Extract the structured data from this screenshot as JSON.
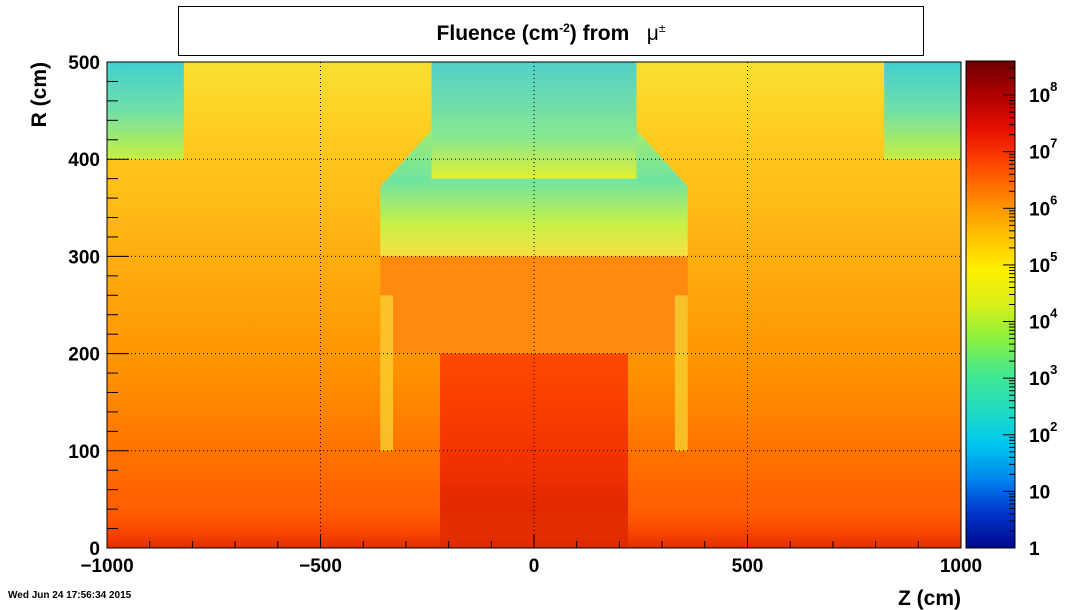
{
  "chart_data": {
    "type": "heatmap",
    "title": {
      "prefix": "Fluence (cm",
      "exponent": "-2",
      "suffix": ") from",
      "particle": "μ",
      "particle_sup": "±"
    },
    "xlabel": "Z (cm)",
    "ylabel": "R (cm)",
    "xlim": [
      -1000,
      1000
    ],
    "ylim": [
      0,
      500
    ],
    "x_ticks": [
      {
        "value": -1000,
        "label": "−1000"
      },
      {
        "value": -500,
        "label": "−500"
      },
      {
        "value": 0,
        "label": "0"
      },
      {
        "value": 500,
        "label": "500"
      },
      {
        "value": 1000,
        "label": "1000"
      }
    ],
    "y_ticks": [
      {
        "value": 0,
        "label": "0"
      },
      {
        "value": 100,
        "label": "100"
      },
      {
        "value": 200,
        "label": "200"
      },
      {
        "value": 300,
        "label": "300"
      },
      {
        "value": 400,
        "label": "400"
      },
      {
        "value": 500,
        "label": "500"
      }
    ],
    "grid": true,
    "colorbar": {
      "scale": "log",
      "range": [
        1,
        400000000
      ],
      "ticks": [
        {
          "value": 1,
          "base": "1",
          "exp": ""
        },
        {
          "value": 10,
          "base": "10",
          "exp": ""
        },
        {
          "value": 100,
          "base": "10",
          "exp": "2"
        },
        {
          "value": 1000,
          "base": "10",
          "exp": "3"
        },
        {
          "value": 10000,
          "base": "10",
          "exp": "4"
        },
        {
          "value": 100000,
          "base": "10",
          "exp": "5"
        },
        {
          "value": 1000000,
          "base": "10",
          "exp": "6"
        },
        {
          "value": 10000000,
          "base": "10",
          "exp": "7"
        },
        {
          "value": 100000000,
          "base": "10",
          "exp": "8"
        }
      ],
      "colors": [
        "#000a8c",
        "#0033cc",
        "#0088ee",
        "#00c8f0",
        "#22dcc0",
        "#44e890",
        "#88f040",
        "#d8f018",
        "#fff000",
        "#ffc000",
        "#ff8800",
        "#ff4a00",
        "#e81000",
        "#b00000",
        "#700000"
      ]
    },
    "regions": [
      {
        "name": "background",
        "z": [
          -1000,
          1000
        ],
        "r": [
          0,
          500
        ],
        "value": 800000
      },
      {
        "name": "forward-far-left",
        "z": [
          -1000,
          -820
        ],
        "r": [
          400,
          500
        ],
        "value": 8000
      },
      {
        "name": "forward-far-right",
        "z": [
          820,
          1000
        ],
        "r": [
          400,
          500
        ],
        "value": 8000
      },
      {
        "name": "outer-barrel-ring",
        "z": [
          -360,
          360
        ],
        "r": [
          300,
          380
        ],
        "value": 20000
      },
      {
        "name": "top-center",
        "z": [
          -240,
          240
        ],
        "r": [
          380,
          500
        ],
        "value": 15000
      },
      {
        "name": "inner-barrel",
        "z": [
          -360,
          360
        ],
        "r": [
          200,
          300
        ],
        "value": 2000000
      },
      {
        "name": "inner-core",
        "z": [
          -220,
          220
        ],
        "r": [
          0,
          200
        ],
        "value": 20000000
      },
      {
        "name": "beamline",
        "z": [
          -1000,
          1000
        ],
        "r": [
          0,
          40
        ],
        "value": 20000000
      }
    ]
  },
  "footer": {
    "timestamp": "Wed Jun 24 17:56:34 2015"
  }
}
